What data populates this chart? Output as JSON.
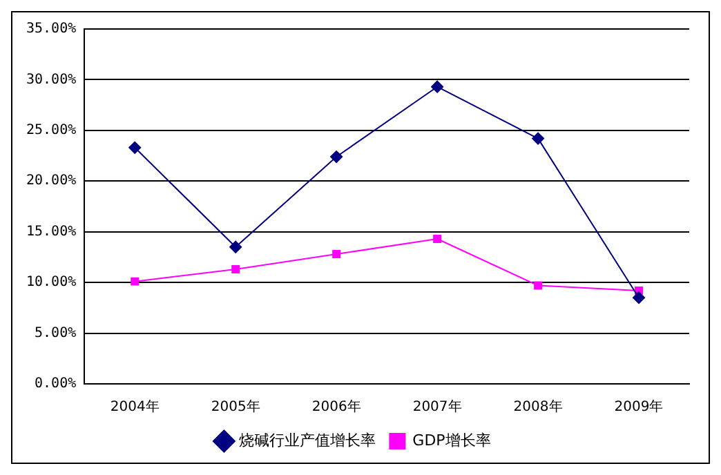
{
  "chart_data": {
    "type": "line",
    "categories": [
      "2004年",
      "2005年",
      "2006年",
      "2007年",
      "2008年",
      "2009年"
    ],
    "series": [
      {
        "name": "烧碱行业产值增长率",
        "color": "#000080",
        "marker": "diamond",
        "values": [
          23.3,
          13.5,
          22.4,
          29.3,
          24.2,
          8.5
        ]
      },
      {
        "name": "GDP增长率",
        "color": "#ff00ff",
        "marker": "square",
        "values": [
          10.1,
          11.3,
          12.8,
          14.3,
          9.7,
          9.2
        ]
      }
    ],
    "ylim": [
      0,
      35
    ],
    "yticks": [
      {
        "value": 0,
        "label": "0.00%"
      },
      {
        "value": 5,
        "label": "5.00%"
      },
      {
        "value": 10,
        "label": "10.00%"
      },
      {
        "value": 15,
        "label": "15.00%"
      },
      {
        "value": 20,
        "label": "20.00%"
      },
      {
        "value": 25,
        "label": "25.00%"
      },
      {
        "value": 30,
        "label": "30.00%"
      },
      {
        "value": 35,
        "label": "35.00%"
      }
    ],
    "grid": "y",
    "legend": "bottom"
  }
}
